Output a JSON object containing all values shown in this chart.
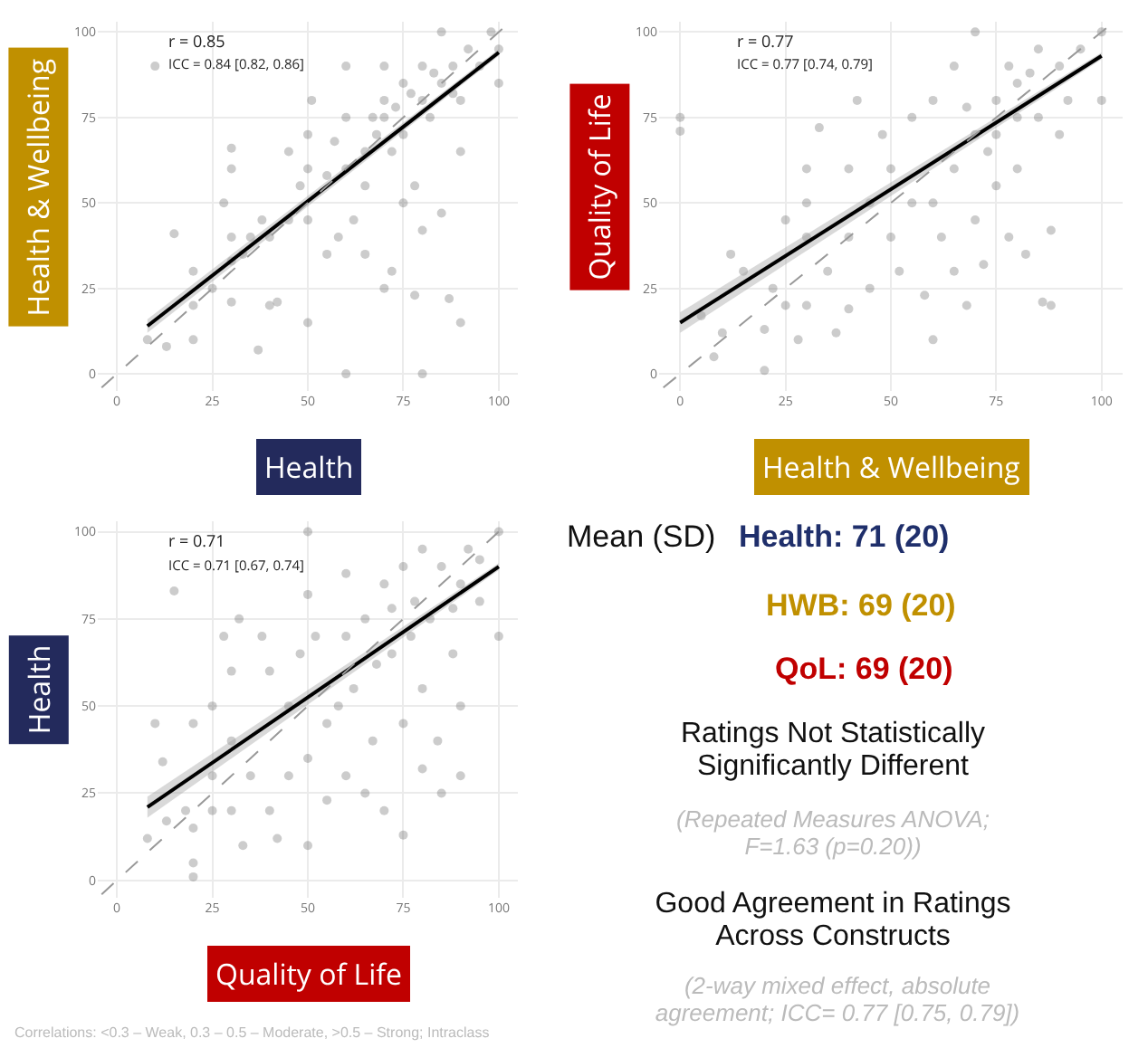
{
  "chart_data": [
    {
      "type": "scatter",
      "xlabel": "Health",
      "ylabel": "Health & Wellbeing",
      "xlim": [
        -5,
        105
      ],
      "ylim": [
        -5,
        103
      ],
      "xticks": [
        0,
        25,
        50,
        75,
        100
      ],
      "yticks": [
        0,
        25,
        50,
        75,
        100
      ],
      "grid": true,
      "annotations": [
        "r = 0.85",
        "ICC = 0.84 [0.82, 0.86]"
      ],
      "series": [
        {
          "color": "#555555",
          "marker": "circle",
          "x": [
            10,
            15,
            8,
            13,
            20,
            20,
            20,
            25,
            28,
            30,
            30,
            30,
            30,
            30,
            33,
            35,
            37,
            38,
            40,
            40,
            42,
            45,
            45,
            48,
            50,
            50,
            50,
            50,
            51,
            55,
            55,
            57,
            58,
            60,
            60,
            60,
            62,
            65,
            65,
            65,
            68,
            70,
            70,
            70,
            72,
            72,
            75,
            75,
            75,
            78,
            78,
            80,
            80,
            80,
            82,
            85,
            85,
            87,
            88,
            90,
            90,
            90,
            92,
            95,
            98,
            100,
            100,
            85,
            80,
            70,
            60,
            67,
            73,
            77,
            83,
            88
          ],
          "values": [
            90,
            41,
            10,
            8,
            20,
            10,
            30,
            25,
            50,
            40,
            33,
            21,
            60,
            66,
            35,
            40,
            7,
            45,
            20,
            40,
            21,
            65,
            45,
            55,
            60,
            45,
            15,
            70,
            80,
            35,
            58,
            68,
            40,
            0,
            75,
            60,
            45,
            55,
            65,
            35,
            70,
            75,
            25,
            80,
            30,
            65,
            70,
            85,
            50,
            55,
            23,
            0,
            80,
            42,
            75,
            85,
            47,
            22,
            90,
            15,
            65,
            80,
            95,
            90,
            100,
            85,
            95,
            100,
            90,
            90,
            90,
            75,
            78,
            82,
            88,
            82
          ]
        },
        {
          "type": "line",
          "color": "#000000",
          "x": [
            8,
            100
          ],
          "values": [
            14,
            94
          ],
          "lower": [
            12,
            93
          ],
          "upper": [
            16,
            95
          ]
        },
        {
          "type": "line",
          "color": "#999999",
          "line_style": "dashed",
          "x": [
            -4,
            103
          ],
          "values": [
            -4,
            103
          ]
        }
      ]
    },
    {
      "type": "scatter",
      "xlabel": "Health & Wellbeing",
      "ylabel": "Quality of Life",
      "xlim": [
        -5,
        105
      ],
      "ylim": [
        -5,
        103
      ],
      "xticks": [
        0,
        25,
        50,
        75,
        100
      ],
      "yticks": [
        0,
        25,
        50,
        75,
        100
      ],
      "grid": true,
      "annotations": [
        "r = 0.77",
        "ICC = 0.77 [0.74, 0.79]"
      ],
      "series": [
        {
          "color": "#555555",
          "marker": "circle",
          "x": [
            0,
            0,
            5,
            8,
            10,
            12,
            15,
            20,
            20,
            22,
            25,
            25,
            28,
            30,
            30,
            30,
            30,
            33,
            35,
            37,
            40,
            40,
            40,
            42,
            45,
            45,
            48,
            50,
            50,
            52,
            55,
            55,
            58,
            60,
            60,
            60,
            62,
            65,
            65,
            65,
            68,
            70,
            70,
            70,
            72,
            75,
            75,
            78,
            80,
            80,
            82,
            85,
            86,
            88,
            88,
            90,
            90,
            92,
            95,
            100,
            100,
            85,
            78,
            75,
            80,
            73,
            68,
            83
          ],
          "values": [
            75,
            71,
            17,
            5,
            12,
            35,
            30,
            1,
            13,
            25,
            45,
            20,
            10,
            20,
            40,
            50,
            60,
            72,
            30,
            12,
            19,
            40,
            60,
            80,
            50,
            25,
            70,
            40,
            60,
            30,
            50,
            75,
            23,
            10,
            50,
            80,
            40,
            30,
            60,
            90,
            20,
            100,
            45,
            70,
            32,
            55,
            80,
            40,
            60,
            85,
            35,
            75,
            21,
            42,
            20,
            70,
            90,
            80,
            95,
            100,
            80,
            95,
            90,
            70,
            75,
            65,
            78,
            88
          ]
        },
        {
          "type": "line",
          "color": "#000000",
          "x": [
            0,
            100
          ],
          "values": [
            15,
            93
          ],
          "lower": [
            12,
            92
          ],
          "upper": [
            18,
            94
          ]
        },
        {
          "type": "line",
          "color": "#999999",
          "line_style": "dashed",
          "x": [
            -4,
            103
          ],
          "values": [
            -4,
            103
          ]
        }
      ]
    },
    {
      "type": "scatter",
      "xlabel": "Quality of Life",
      "ylabel": "Health",
      "xlim": [
        -5,
        105
      ],
      "ylim": [
        -5,
        103
      ],
      "xticks": [
        0,
        25,
        50,
        75,
        100
      ],
      "yticks": [
        0,
        25,
        50,
        75,
        100
      ],
      "grid": true,
      "annotations": [
        "r = 0.71",
        "ICC = 0.71 [0.67, 0.74]",
        "Correlations: <0.3 – Weak, 0.3 – 0.5 – Moderate, >0.5 – Strong; Intraclass"
      ],
      "series": [
        {
          "color": "#555555",
          "marker": "circle",
          "x": [
            8,
            10,
            12,
            13,
            15,
            18,
            20,
            20,
            20,
            20,
            25,
            25,
            25,
            28,
            30,
            30,
            30,
            32,
            33,
            35,
            38,
            40,
            40,
            42,
            45,
            45,
            48,
            50,
            50,
            50,
            50,
            52,
            55,
            55,
            58,
            60,
            60,
            60,
            62,
            65,
            65,
            67,
            70,
            70,
            72,
            75,
            75,
            75,
            77,
            80,
            80,
            82,
            84,
            85,
            88,
            90,
            90,
            90,
            92,
            95,
            100,
            100,
            85,
            78,
            72,
            88,
            95,
            68,
            80
          ],
          "values": [
            12,
            45,
            34,
            17,
            83,
            20,
            1,
            5,
            15,
            45,
            30,
            20,
            50,
            70,
            60,
            40,
            20,
            75,
            10,
            30,
            70,
            60,
            20,
            12,
            30,
            50,
            65,
            10,
            35,
            100,
            82,
            70,
            45,
            23,
            50,
            70,
            30,
            88,
            55,
            75,
            25,
            40,
            20,
            85,
            65,
            13,
            45,
            90,
            70,
            55,
            32,
            75,
            40,
            25,
            65,
            30,
            50,
            85,
            95,
            80,
            100,
            70,
            90,
            80,
            78,
            78,
            92,
            62,
            95
          ]
        },
        {
          "type": "line",
          "color": "#000000",
          "x": [
            8,
            100
          ],
          "values": [
            21,
            90
          ],
          "lower": [
            18,
            89
          ],
          "upper": [
            24,
            91
          ]
        },
        {
          "type": "line",
          "color": "#999999",
          "line_style": "dashed",
          "x": [
            -4,
            103
          ],
          "values": [
            -4,
            103
          ]
        }
      ]
    },
    {
      "type": "other",
      "annotations": [
        "Mean (SD)",
        "Health: 71 (20)",
        "HWB:   69 (20)",
        "QoL:     69 (20)",
        "Ratings Not Statistically Significantly Different",
        "(Repeated Measures ANOVA; F=1.63 (p=0.20))",
        "Good Agreement in Ratings Across Constructs",
        "(2-way mixed effect, absolute agreement; ICC= 0.77 [0.75, 0.79])"
      ]
    }
  ]
}
